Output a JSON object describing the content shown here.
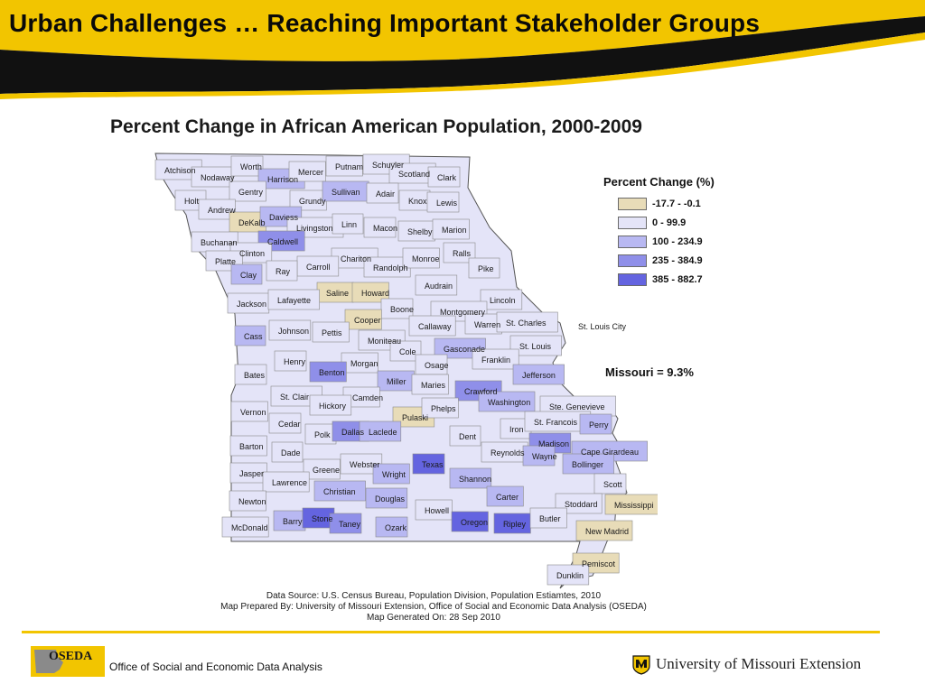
{
  "slide": {
    "title": "Urban Challenges … Reaching Important Stakeholder Groups"
  },
  "map": {
    "title": "Percent Change in African American Population, 2000-2009",
    "legend": {
      "title": "Percent Change (%)",
      "items": [
        {
          "label": "-17.7 - -0.1",
          "color": "#e8dcb8"
        },
        {
          "label": "0 - 99.9",
          "color": "#e4e4f8"
        },
        {
          "label": "100 - 234.9",
          "color": "#b8b8f2"
        },
        {
          "label": "235 - 384.9",
          "color": "#8f8fe9"
        },
        {
          "label": "385 - 882.7",
          "color": "#6464e0"
        }
      ]
    },
    "state_stat": "Missouri = 9.3%",
    "counties": [
      {
        "name": "Atchison",
        "cls": 1
      },
      {
        "name": "Nodaway",
        "cls": 1
      },
      {
        "name": "Worth",
        "cls": 1
      },
      {
        "name": "Harrison",
        "cls": 2
      },
      {
        "name": "Mercer",
        "cls": 1
      },
      {
        "name": "Putnam",
        "cls": 1
      },
      {
        "name": "Schuyler",
        "cls": 1
      },
      {
        "name": "Scotland",
        "cls": 1
      },
      {
        "name": "Clark",
        "cls": 1
      },
      {
        "name": "Holt",
        "cls": 1
      },
      {
        "name": "Gentry",
        "cls": 1
      },
      {
        "name": "Grundy",
        "cls": 1
      },
      {
        "name": "Sullivan",
        "cls": 2
      },
      {
        "name": "Adair",
        "cls": 1
      },
      {
        "name": "Knox",
        "cls": 1
      },
      {
        "name": "Lewis",
        "cls": 1
      },
      {
        "name": "Andrew",
        "cls": 1
      },
      {
        "name": "DeKalb",
        "cls": 0
      },
      {
        "name": "Daviess",
        "cls": 2
      },
      {
        "name": "Livingston",
        "cls": 1
      },
      {
        "name": "Linn",
        "cls": 1
      },
      {
        "name": "Macon",
        "cls": 1
      },
      {
        "name": "Shelby",
        "cls": 1
      },
      {
        "name": "Marion",
        "cls": 1
      },
      {
        "name": "Buchanan",
        "cls": 1
      },
      {
        "name": "Caldwell",
        "cls": 3
      },
      {
        "name": "Clinton",
        "cls": 1
      },
      {
        "name": "Chariton",
        "cls": 1
      },
      {
        "name": "Randolph",
        "cls": 1
      },
      {
        "name": "Monroe",
        "cls": 1
      },
      {
        "name": "Ralls",
        "cls": 1
      },
      {
        "name": "Platte",
        "cls": 1
      },
      {
        "name": "Carroll",
        "cls": 1
      },
      {
        "name": "Pike",
        "cls": 1
      },
      {
        "name": "Clay",
        "cls": 2
      },
      {
        "name": "Ray",
        "cls": 1
      },
      {
        "name": "Audrain",
        "cls": 1
      },
      {
        "name": "Saline",
        "cls": 0
      },
      {
        "name": "Howard",
        "cls": 0
      },
      {
        "name": "Lincoln",
        "cls": 1
      },
      {
        "name": "Jackson",
        "cls": 1
      },
      {
        "name": "Lafayette",
        "cls": 1
      },
      {
        "name": "Boone",
        "cls": 1
      },
      {
        "name": "Montgomery",
        "cls": 1
      },
      {
        "name": "Cooper",
        "cls": 0
      },
      {
        "name": "Callaway",
        "cls": 1
      },
      {
        "name": "Warren",
        "cls": 1
      },
      {
        "name": "St. Charles",
        "cls": 1
      },
      {
        "name": "St. Louis City",
        "cls": 0
      },
      {
        "name": "Cass",
        "cls": 2
      },
      {
        "name": "Johnson",
        "cls": 1
      },
      {
        "name": "Pettis",
        "cls": 1
      },
      {
        "name": "Moniteau",
        "cls": 1
      },
      {
        "name": "Cole",
        "cls": 1
      },
      {
        "name": "Gasconade",
        "cls": 2
      },
      {
        "name": "St. Louis",
        "cls": 1
      },
      {
        "name": "Henry",
        "cls": 1
      },
      {
        "name": "Morgan",
        "cls": 1
      },
      {
        "name": "Osage",
        "cls": 1
      },
      {
        "name": "Franklin",
        "cls": 1
      },
      {
        "name": "Bates",
        "cls": 1
      },
      {
        "name": "Benton",
        "cls": 3
      },
      {
        "name": "Miller",
        "cls": 2
      },
      {
        "name": "Maries",
        "cls": 1
      },
      {
        "name": "Jefferson",
        "cls": 2
      },
      {
        "name": "St. Clair",
        "cls": 1
      },
      {
        "name": "Camden",
        "cls": 1
      },
      {
        "name": "Crawford",
        "cls": 3
      },
      {
        "name": "Washington",
        "cls": 2
      },
      {
        "name": "Hickory",
        "cls": 1
      },
      {
        "name": "Pulaski",
        "cls": 0
      },
      {
        "name": "Phelps",
        "cls": 1
      },
      {
        "name": "Ste. Genevieve",
        "cls": 1
      },
      {
        "name": "Vernon",
        "cls": 1
      },
      {
        "name": "Cedar",
        "cls": 1
      },
      {
        "name": "Polk",
        "cls": 1
      },
      {
        "name": "Dallas",
        "cls": 3
      },
      {
        "name": "Laclede",
        "cls": 2
      },
      {
        "name": "Iron",
        "cls": 1
      },
      {
        "name": "St. Francois",
        "cls": 1
      },
      {
        "name": "Perry",
        "cls": 2
      },
      {
        "name": "Dent",
        "cls": 1
      },
      {
        "name": "Barton",
        "cls": 1
      },
      {
        "name": "Dade",
        "cls": 1
      },
      {
        "name": "Madison",
        "cls": 3
      },
      {
        "name": "Cape Girardeau",
        "cls": 2
      },
      {
        "name": "Reynolds",
        "cls": 1
      },
      {
        "name": "Webster",
        "cls": 1
      },
      {
        "name": "Wright",
        "cls": 2
      },
      {
        "name": "Texas",
        "cls": 4
      },
      {
        "name": "Bollinger",
        "cls": 2
      },
      {
        "name": "Jasper",
        "cls": 1
      },
      {
        "name": "Greene",
        "cls": 1
      },
      {
        "name": "Lawrence",
        "cls": 1
      },
      {
        "name": "Shannon",
        "cls": 2
      },
      {
        "name": "Wayne",
        "cls": 2
      },
      {
        "name": "Scott",
        "cls": 1
      },
      {
        "name": "Christian",
        "cls": 2
      },
      {
        "name": "Carter",
        "cls": 2
      },
      {
        "name": "Newton",
        "cls": 1
      },
      {
        "name": "Douglas",
        "cls": 2
      },
      {
        "name": "Howell",
        "cls": 1
      },
      {
        "name": "Stoddard",
        "cls": 1
      },
      {
        "name": "Mississippi",
        "cls": 0
      },
      {
        "name": "McDonald",
        "cls": 1
      },
      {
        "name": "Barry",
        "cls": 2
      },
      {
        "name": "Stone",
        "cls": 4
      },
      {
        "name": "Taney",
        "cls": 3
      },
      {
        "name": "Ozark",
        "cls": 2
      },
      {
        "name": "Oregon",
        "cls": 4
      },
      {
        "name": "Ripley",
        "cls": 4
      },
      {
        "name": "Butler",
        "cls": 1
      },
      {
        "name": "New Madrid",
        "cls": 0
      },
      {
        "name": "Pemiscot",
        "cls": 0
      },
      {
        "name": "Dunklin",
        "cls": 1
      }
    ]
  },
  "source": {
    "line1": "Data Source: U.S. Census Bureau, Population Division, Population Estiamtes, 2010",
    "line2": "Map Prepared By: University of Missouri Extension, Office of Social and Economic Data Analysis (OSEDA)",
    "line3": "Map Generated On: 28 Sep 2010"
  },
  "footer": {
    "oseda_logo_text": "OSEDA",
    "oseda_name": "Office of Social and Economic Data Analysis",
    "mu_name": "University of Missouri Extension",
    "line_color": "#f2c500"
  }
}
